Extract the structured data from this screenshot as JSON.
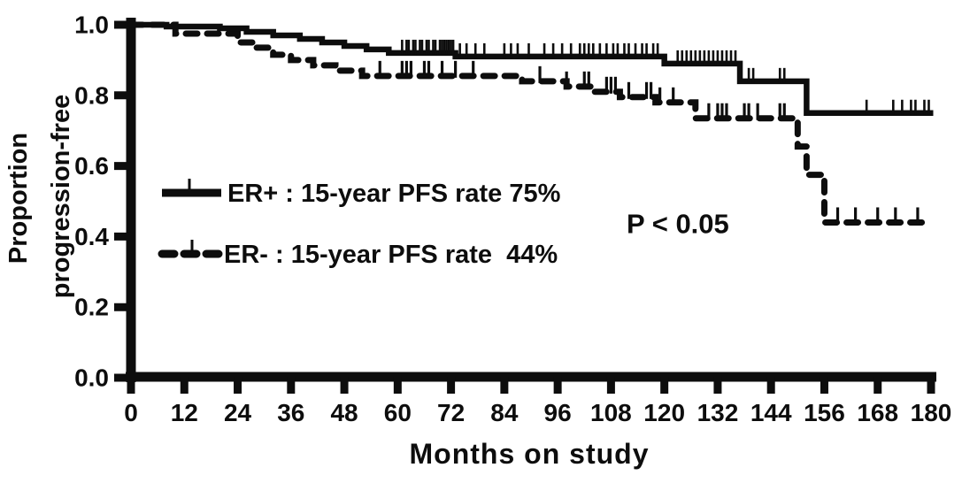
{
  "figure": {
    "background_color": "#ffffff",
    "ink_color": "#0d0d0d"
  },
  "chart_data": {
    "type": "line",
    "subtype": "kaplan-meier-step-curves",
    "title": "",
    "xlabel": "Months on study",
    "ylabel_lines": [
      "Proportion",
      "progression-free"
    ],
    "xlim": [
      0,
      180
    ],
    "ylim": [
      0.0,
      1.0
    ],
    "xticks": [
      0,
      12,
      24,
      36,
      48,
      60,
      72,
      84,
      96,
      108,
      120,
      132,
      144,
      156,
      168,
      180
    ],
    "yticks": [
      "1.0",
      "0.8",
      "0.6",
      "0.4",
      "0.2",
      "0.0"
    ],
    "grid": false,
    "legend_position": "center-left-inside",
    "annotation": {
      "text": "P < 0.05"
    },
    "series": [
      {
        "name": "ER+",
        "legend_label": "ER+ : 15-year PFS rate 75%",
        "line_style": "solid",
        "final_rate_pct": 75,
        "end_month": 180.5,
        "steps": [
          [
            0,
            1.0
          ],
          [
            8,
            0.995
          ],
          [
            20,
            0.99
          ],
          [
            26,
            0.98
          ],
          [
            32,
            0.97
          ],
          [
            38,
            0.96
          ],
          [
            43,
            0.95
          ],
          [
            48,
            0.94
          ],
          [
            53,
            0.93
          ],
          [
            58,
            0.92
          ],
          [
            73,
            0.91
          ],
          [
            120,
            0.89
          ],
          [
            137,
            0.84
          ],
          [
            152,
            0.75
          ]
        ],
        "censor_months": [
          61,
          62,
          62.5,
          63.5,
          64,
          65,
          65.5,
          66.5,
          67,
          68,
          68.5,
          69.5,
          70,
          70.5,
          71,
          71.5,
          72,
          72.5,
          74,
          75.5,
          77.5,
          79.5,
          84,
          85.5,
          87,
          89.5,
          93,
          95,
          97,
          99,
          101,
          102,
          103,
          104,
          105.5,
          107,
          108.5,
          109.5,
          111,
          112,
          113.5,
          115,
          116,
          117.5,
          118.5,
          123,
          124,
          125,
          126,
          127,
          128,
          129,
          130,
          131,
          132,
          133,
          134,
          135,
          136,
          139,
          140,
          146,
          147,
          165.5,
          171.5,
          173.5,
          175.5,
          176.5,
          178.5,
          179.5
        ]
      },
      {
        "name": "ER-",
        "legend_label": "ER- : 15-year PFS rate  44%",
        "line_style": "dashed",
        "final_rate_pct": 44,
        "end_month": 178.5,
        "steps": [
          [
            0,
            1.0
          ],
          [
            10,
            0.975
          ],
          [
            24,
            0.95
          ],
          [
            28,
            0.935
          ],
          [
            32,
            0.915
          ],
          [
            36,
            0.9
          ],
          [
            41,
            0.885
          ],
          [
            46,
            0.87
          ],
          [
            52,
            0.855
          ],
          [
            88,
            0.84
          ],
          [
            98,
            0.825
          ],
          [
            104,
            0.81
          ],
          [
            110,
            0.795
          ],
          [
            118,
            0.78
          ],
          [
            127,
            0.735
          ],
          [
            150,
            0.655
          ],
          [
            152,
            0.575
          ],
          [
            156,
            0.44
          ]
        ],
        "censor_months": [
          56,
          61,
          62,
          63,
          66,
          67,
          70,
          73,
          77,
          92,
          98,
          102,
          103,
          107,
          108,
          109,
          112,
          116,
          117,
          119,
          122,
          130,
          132,
          133,
          134,
          138,
          139,
          141,
          146,
          147,
          159,
          163,
          168,
          172,
          177
        ]
      }
    ]
  }
}
